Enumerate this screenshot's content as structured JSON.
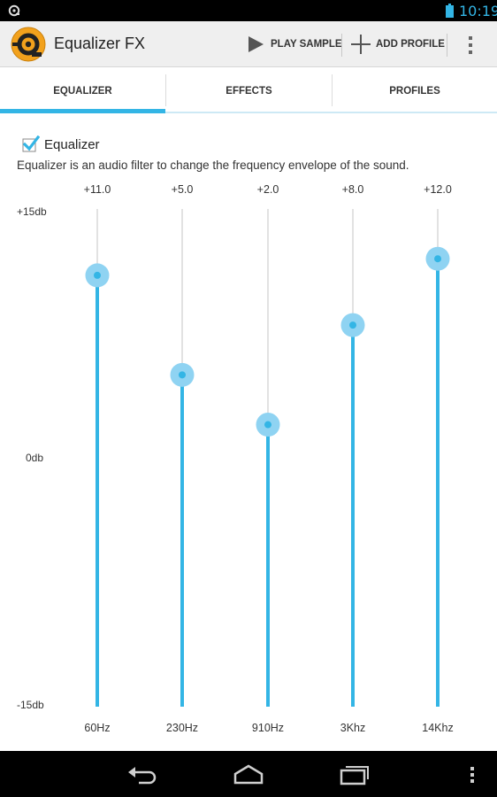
{
  "status_bar": {
    "time": "10:19"
  },
  "app": {
    "title": "Equalizer FX"
  },
  "actions": {
    "play_sample": "PLAY SAMPLE",
    "add_profile": "ADD PROFILE"
  },
  "tabs": [
    {
      "label": "EQUALIZER",
      "selected": true
    },
    {
      "label": "EFFECTS",
      "selected": false
    },
    {
      "label": "PROFILES",
      "selected": false
    }
  ],
  "equalizer": {
    "enabled": true,
    "checkbox_label": "Equalizer",
    "description": "Equalizer is an audio filter to change the frequency envelope of the sound.",
    "db_scale": {
      "max_label": "+15db",
      "mid_label": "0db",
      "min_label": "-15db",
      "max": 15,
      "min": -15
    },
    "bands": [
      {
        "freq": "60Hz",
        "value_label": "+11.0",
        "value": 11.0
      },
      {
        "freq": "230Hz",
        "value_label": "+5.0",
        "value": 5.0
      },
      {
        "freq": "910Hz",
        "value_label": "+2.0",
        "value": 2.0
      },
      {
        "freq": "3Khz",
        "value_label": "+8.0",
        "value": 8.0
      },
      {
        "freq": "14Khz",
        "value_label": "+12.0",
        "value": 12.0
      }
    ]
  },
  "colors": {
    "accent": "#33b5e5",
    "thumb_halo": "#8fd3f2",
    "track_inactive": "#d8d8d8",
    "navbar": "#000000"
  }
}
